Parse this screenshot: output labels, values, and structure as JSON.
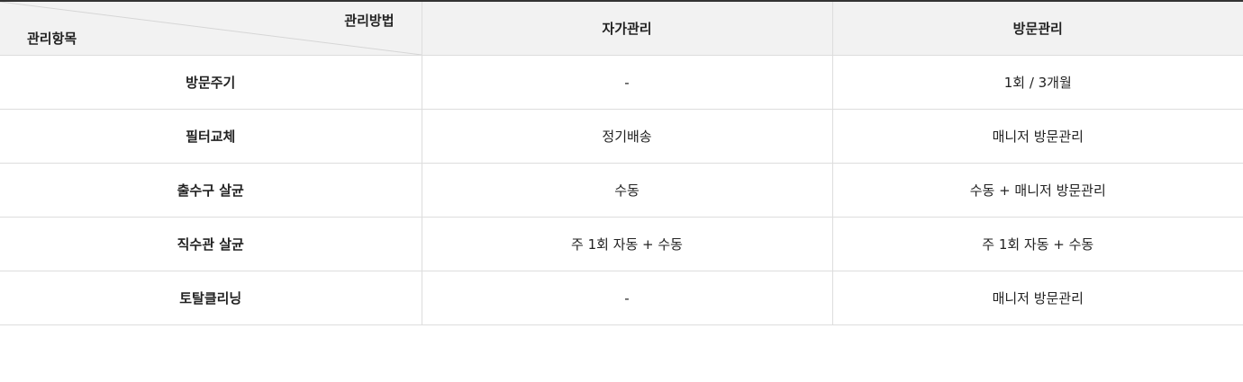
{
  "header": {
    "corner_top_label": "관리방법",
    "corner_bottom_label": "관리항목",
    "columns": [
      "자가관리",
      "방문관리"
    ]
  },
  "rows": [
    {
      "item": "방문주기",
      "self": "-",
      "visit": "1회 / 3개월"
    },
    {
      "item": "필터교체",
      "self": "정기배송",
      "visit": "매니저 방문관리"
    },
    {
      "item": "출수구 살균",
      "self": "수동",
      "visit": "수동 + 매니저 방문관리"
    },
    {
      "item": "직수관 살균",
      "self": "주 1회 자동 + 수동",
      "visit": "주 1회 자동 + 수동"
    },
    {
      "item": "토탈클리닝",
      "self": "-",
      "visit": "매니저 방문관리"
    }
  ]
}
